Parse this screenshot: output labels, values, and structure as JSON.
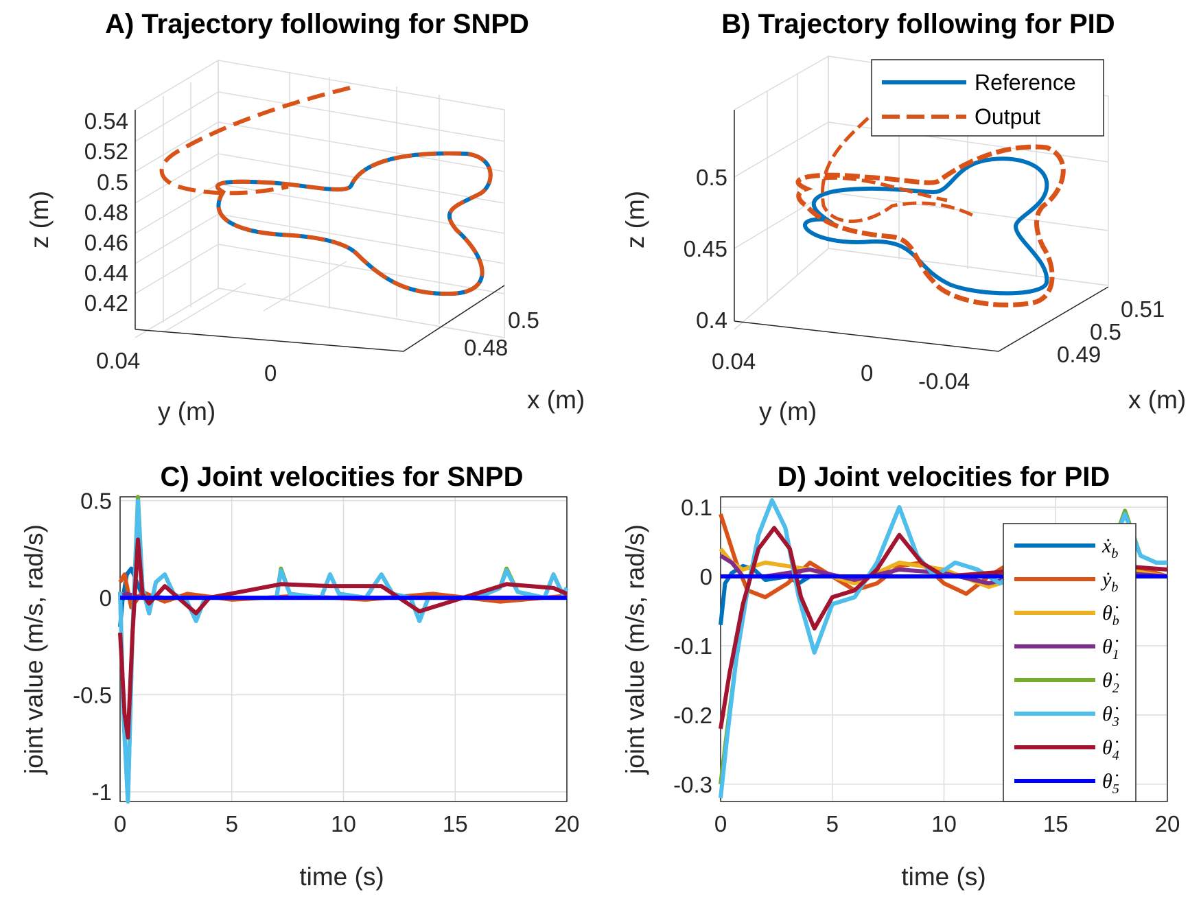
{
  "colors": {
    "reference": "#0072BD",
    "output": "#D95319",
    "xb": "#0072BD",
    "yb": "#D95319",
    "thb": "#EDB120",
    "th1": "#7E2F8E",
    "th2": "#77AC30",
    "th3": "#4DBEEE",
    "th4": "#A2142F",
    "th5": "#0000FF"
  },
  "chart_data": [
    {
      "id": "A",
      "type": "line3d",
      "title": "A) Trajectory following for SNPD",
      "xlabel": "x (m)",
      "ylabel": "y (m)",
      "zlabel": "z (m)",
      "z_ticks": [
        "0.54",
        "0.52",
        "0.5",
        "0.48",
        "0.46",
        "0.44",
        "0.42"
      ],
      "y_ticks": [
        "0.04",
        "0"
      ],
      "x_ticks": [
        "0.5",
        "0.48"
      ],
      "zlim": [
        0.41,
        0.55
      ],
      "grid": true,
      "series": [
        {
          "name": "Reference",
          "style": "solid",
          "shape": "three-lobed closed curve"
        },
        {
          "name": "Output",
          "style": "dashed",
          "note": "tracks reference closely, approach arc from upper left"
        }
      ]
    },
    {
      "id": "B",
      "type": "line3d",
      "title": "B) Trajectory following for PID",
      "xlabel": "x (m)",
      "ylabel": "y (m)",
      "zlabel": "z (m)",
      "z_ticks": [
        "0.5",
        "0.45",
        "0.4"
      ],
      "y_ticks": [
        "0.04",
        "0",
        "-0.04"
      ],
      "x_ticks": [
        "0.51",
        "0.5",
        "0.49"
      ],
      "grid": true,
      "legend": {
        "position": "top-right",
        "entries": [
          "Reference",
          "Output"
        ]
      },
      "series": [
        {
          "name": "Reference",
          "style": "solid"
        },
        {
          "name": "Output",
          "style": "dashed",
          "note": "noisy, larger deviation from reference"
        }
      ]
    },
    {
      "id": "C",
      "type": "line",
      "title": "C) Joint velocities for SNPD",
      "xlabel": "time (s)",
      "ylabel": "joint value (m/s, rad/s)",
      "xlim": [
        0,
        20
      ],
      "ylim": [
        -1.05,
        0.52
      ],
      "x_ticks": [
        "0",
        "5",
        "10",
        "15",
        "20"
      ],
      "y_ticks": [
        "0.5",
        "0",
        "-0.5",
        "-1"
      ],
      "grid": true,
      "series": [
        {
          "key": "xb",
          "x": [
            0,
            0.1,
            0.2,
            0.3,
            0.5,
            1,
            2,
            5,
            10,
            15,
            20
          ],
          "y": [
            -0.15,
            -0.02,
            0.05,
            0.12,
            0.15,
            0.01,
            0.0,
            0.0,
            0.0,
            0.0,
            0.0
          ]
        },
        {
          "key": "yb",
          "x": [
            0,
            0.2,
            0.5,
            1,
            2,
            3,
            5,
            8,
            11,
            14,
            17,
            20
          ],
          "y": [
            0.08,
            0.12,
            -0.05,
            0.03,
            -0.02,
            0.02,
            -0.01,
            0.01,
            -0.01,
            0.02,
            -0.02,
            0.01
          ]
        },
        {
          "key": "thb",
          "x": [
            0,
            0.3,
            1,
            2,
            20
          ],
          "y": [
            0.02,
            0.01,
            0.0,
            0.0,
            0.0
          ]
        },
        {
          "key": "th1",
          "x": [
            0,
            0.3,
            1,
            2,
            20
          ],
          "y": [
            0.01,
            0.02,
            0.0,
            0.0,
            0.0
          ]
        },
        {
          "key": "th2",
          "x": [
            0,
            0.15,
            0.35,
            0.55,
            0.8,
            1.0,
            1.3,
            1.6,
            2.0,
            2.4,
            3.0,
            3.4,
            3.8,
            5,
            7,
            7.2,
            7.6,
            9,
            9.4,
            9.8,
            11,
            11.7,
            12.2,
            13,
            13.4,
            13.8,
            16,
            17,
            17.3,
            17.8,
            19,
            19.4,
            19.8,
            20
          ],
          "y": [
            0.03,
            -0.6,
            -1.05,
            -0.2,
            0.52,
            0.05,
            -0.08,
            0.08,
            0.12,
            0.02,
            -0.02,
            -0.12,
            0.0,
            0.0,
            0.0,
            0.15,
            0.02,
            0.0,
            0.12,
            0.02,
            0.0,
            0.12,
            0.02,
            0.0,
            -0.12,
            0.0,
            0.0,
            0.05,
            0.15,
            0.03,
            0.0,
            0.12,
            0.02,
            0.05
          ]
        },
        {
          "key": "th3",
          "x": [
            0,
            0.15,
            0.35,
            0.55,
            0.8,
            1.0,
            1.3,
            1.6,
            2.0,
            2.4,
            3.0,
            3.4,
            3.8,
            5,
            7,
            7.2,
            7.6,
            9,
            9.4,
            9.8,
            11,
            11.7,
            12.2,
            13,
            13.4,
            13.8,
            16,
            17,
            17.3,
            17.8,
            19,
            19.4,
            19.8,
            20
          ],
          "y": [
            0.03,
            -0.6,
            -1.05,
            -0.2,
            0.5,
            0.05,
            -0.08,
            0.08,
            0.12,
            0.02,
            -0.02,
            -0.12,
            0.0,
            0.0,
            0.0,
            0.14,
            0.02,
            0.0,
            0.12,
            0.02,
            0.0,
            0.12,
            0.02,
            0.0,
            -0.12,
            0.0,
            0.0,
            0.05,
            0.14,
            0.03,
            0.0,
            0.12,
            0.02,
            0.05
          ]
        },
        {
          "key": "th4",
          "x": [
            0,
            0.2,
            0.35,
            0.55,
            0.8,
            1.0,
            1.3,
            2.0,
            3.4,
            4,
            7.2,
            9.4,
            11.7,
            13.4,
            17.3,
            19.4,
            20
          ],
          "y": [
            -0.18,
            -0.6,
            -0.72,
            -0.2,
            0.3,
            0.02,
            -0.03,
            0.06,
            -0.08,
            0.0,
            0.07,
            0.06,
            0.06,
            -0.07,
            0.07,
            0.05,
            0.02
          ]
        },
        {
          "key": "th5",
          "x": [
            0,
            20
          ],
          "y": [
            0.0,
            0.0
          ]
        }
      ]
    },
    {
      "id": "D",
      "type": "line",
      "title": "D) Joint velocities for PID",
      "xlabel": "time (s)",
      "ylabel": "joint value (m/s, rad/s)",
      "xlim": [
        0,
        20
      ],
      "ylim": [
        -0.325,
        0.115
      ],
      "x_ticks": [
        "0",
        "5",
        "10",
        "15",
        "20"
      ],
      "y_ticks": [
        "0.1",
        "0",
        "-0.1",
        "-0.2",
        "-0.3"
      ],
      "grid": true,
      "legend": {
        "position": "right",
        "entries": [
          "xb",
          "yb",
          "thb",
          "th1",
          "th2",
          "th3",
          "th4",
          "th5"
        ]
      },
      "series": [
        {
          "key": "xb",
          "x": [
            0,
            0.2,
            0.5,
            1,
            1.5,
            2,
            3,
            3.5,
            4,
            5,
            20
          ],
          "y": [
            -0.07,
            -0.01,
            0.005,
            0.015,
            0.01,
            -0.005,
            0.0,
            -0.01,
            0.0,
            0.0,
            0.0
          ]
        },
        {
          "key": "yb",
          "x": [
            0,
            0.3,
            0.7,
            1.2,
            2,
            3,
            4,
            5,
            6,
            7,
            8,
            9,
            10,
            11,
            12,
            13,
            14,
            15,
            16,
            17,
            18,
            19,
            20
          ],
          "y": [
            0.09,
            0.06,
            0.02,
            -0.02,
            -0.03,
            -0.01,
            0.02,
            0.0,
            -0.02,
            -0.01,
            0.015,
            0.02,
            -0.01,
            -0.025,
            0.0,
            0.02,
            0.02,
            -0.01,
            -0.02,
            0.0,
            0.01,
            0.01,
            0.0
          ]
        },
        {
          "key": "thb",
          "x": [
            0,
            0.5,
            1,
            2,
            4,
            6,
            8,
            10,
            12,
            14,
            16,
            18,
            20
          ],
          "y": [
            0.04,
            0.02,
            0.01,
            0.02,
            0.01,
            -0.01,
            0.02,
            0.01,
            -0.015,
            0.005,
            0.02,
            0.01,
            0.0
          ]
        },
        {
          "key": "th1",
          "x": [
            0,
            0.5,
            1,
            2,
            4,
            6,
            8,
            10,
            12,
            14,
            16,
            18,
            20
          ],
          "y": [
            0.03,
            0.02,
            0.0,
            0.0,
            0.01,
            -0.005,
            0.01,
            0.005,
            -0.01,
            0.005,
            0.01,
            0.005,
            0.0
          ]
        },
        {
          "key": "th2",
          "x": [
            0,
            0.3,
            0.7,
            1.2,
            1.7,
            2.3,
            2.9,
            3.5,
            4.2,
            5.0,
            6.0,
            7.0,
            8.0,
            8.8,
            9.6,
            10.5,
            11.5,
            12.5,
            13.5,
            14.5,
            15.5,
            16.5,
            17.5,
            18.1,
            18.8,
            19.5,
            20
          ],
          "y": [
            -0.3,
            -0.22,
            -0.12,
            -0.02,
            0.06,
            0.11,
            0.07,
            -0.03,
            -0.11,
            -0.04,
            -0.03,
            0.02,
            0.1,
            0.03,
            0.0,
            0.02,
            0.01,
            -0.01,
            0.015,
            0.02,
            0.01,
            0.02,
            0.04,
            0.095,
            0.03,
            0.02,
            0.02
          ]
        },
        {
          "key": "th3",
          "x": [
            0,
            0.3,
            0.7,
            1.2,
            1.7,
            2.3,
            2.9,
            3.5,
            4.2,
            5.0,
            6.0,
            7.0,
            8.0,
            8.8,
            9.6,
            10.5,
            11.5,
            12.5,
            13.5,
            14.5,
            15.5,
            16.5,
            17.5,
            18.1,
            18.8,
            19.5,
            20
          ],
          "y": [
            -0.32,
            -0.23,
            -0.12,
            -0.02,
            0.06,
            0.11,
            0.07,
            -0.03,
            -0.11,
            -0.04,
            -0.03,
            0.02,
            0.1,
            0.03,
            0.0,
            0.02,
            0.01,
            -0.01,
            0.015,
            0.02,
            0.01,
            0.02,
            0.04,
            0.09,
            0.03,
            0.02,
            0.02
          ]
        },
        {
          "key": "th4",
          "x": [
            0,
            0.4,
            1.0,
            1.7,
            2.4,
            3.1,
            3.6,
            4.2,
            5.0,
            6.0,
            7.0,
            8.0,
            9.0,
            10,
            12,
            14,
            16,
            18,
            20
          ],
          "y": [
            -0.22,
            -0.14,
            -0.04,
            0.04,
            0.07,
            0.04,
            -0.03,
            -0.075,
            -0.03,
            -0.02,
            0.01,
            0.06,
            0.02,
            0.0,
            0.005,
            0.01,
            0.005,
            0.015,
            0.01
          ]
        },
        {
          "key": "th5",
          "x": [
            0,
            20
          ],
          "y": [
            0.0,
            0.0
          ]
        }
      ]
    }
  ],
  "legend_labels": {
    "xb": "ẋ",
    "xb_sub": "b",
    "yb": "ẏ",
    "yb_sub": "b",
    "thb": "θ̇",
    "thb_sub": "b",
    "th1": "θ̇",
    "th1_sub": "1",
    "th2": "θ̇",
    "th2_sub": "2",
    "th3": "θ̇",
    "th3_sub": "3",
    "th4": "θ̇",
    "th4_sub": "4",
    "th5": "θ̇",
    "th5_sub": "5"
  },
  "legend_order": [
    "xb",
    "yb",
    "thb",
    "th1",
    "th2",
    "th3",
    "th4",
    "th5"
  ],
  "b_legend": {
    "reference": "Reference",
    "output": "Output"
  }
}
